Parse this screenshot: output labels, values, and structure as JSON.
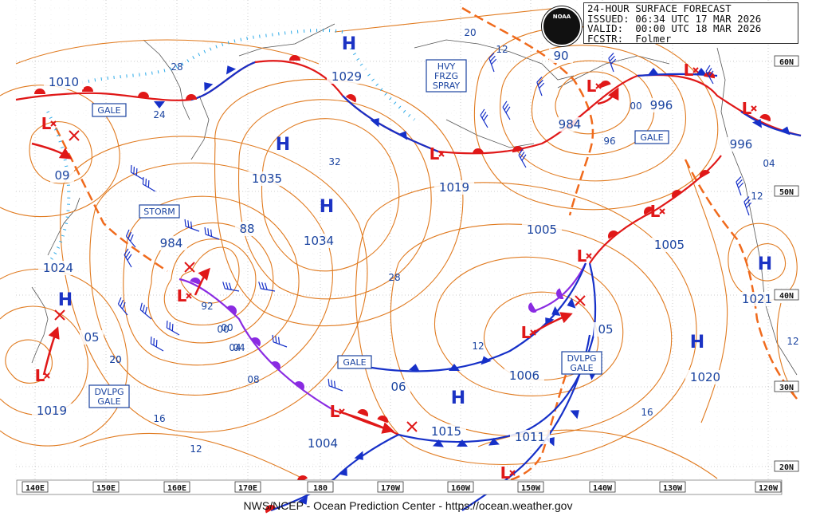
{
  "header": {
    "line1": "24-HOUR SURFACE FORECAST",
    "line2": "ISSUED: 06:34 UTC 17 MAR 2026",
    "line3": "VALID:  00:00 UTC 18 MAR 2026",
    "line4": "FCSTR:  Folmer",
    "logo_text": "NOAA"
  },
  "footer": "NWS/NCEP - Ocean Prediction Center - https://ocean.weather.gov",
  "lon_labels": [
    "140E",
    "150E",
    "160E",
    "170E",
    "180",
    "170W",
    "160W",
    "150W",
    "140W",
    "130W",
    "120W"
  ],
  "lat_labels": [
    "60N",
    "50N",
    "40N",
    "30N",
    "20N"
  ],
  "high_letter": "H",
  "low_letter": "L",
  "pressure_labels": [
    "1010",
    "09",
    "1024",
    "1019",
    "05",
    "20",
    "984",
    "88",
    "1035",
    "1034",
    "1029",
    "20",
    "1019",
    "1005",
    "90",
    "984",
    "996",
    "996",
    "1005",
    "1021",
    "1020",
    "1006",
    "06",
    "1015",
    "1004",
    "1011",
    "05",
    "12",
    "12",
    "16",
    "20",
    "32",
    "28",
    "24",
    "12",
    "00",
    "04",
    "96",
    "00",
    "04",
    "12",
    "92",
    "00",
    "04",
    "08",
    "12",
    "16",
    "28"
  ],
  "warning_labels": [
    "GALE",
    "STORM",
    "GALE",
    "DVLPG\nGALE",
    "DVLPG\nGALE",
    "GALE",
    "HVY\nFRZG\nSPRAY"
  ],
  "colors": {
    "isobar": "#e07a1f",
    "grid": "#9a9a9a",
    "cold": "#1630c8",
    "warm": "#e01818",
    "occluded": "#8a2be2",
    "spray": "#2aa9e8",
    "trough": "#f06a1c",
    "label": "#1b44a0",
    "high": "#1c33c4",
    "low": "#e01818"
  }
}
